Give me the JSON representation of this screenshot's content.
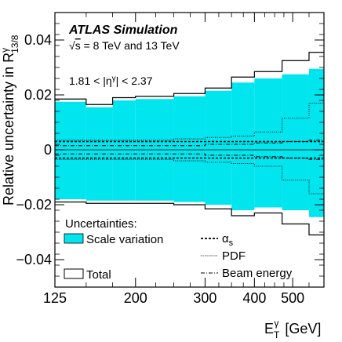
{
  "chart_data": {
    "type": "area",
    "xlabel": "E_T^γ [GeV]",
    "ylabel": "Relative uncertainty in R^γ_13/8",
    "xscale": "log",
    "xlim": [
      125,
      600
    ],
    "ylim": [
      -0.05,
      0.05
    ],
    "xticks": [
      125,
      200,
      300,
      400,
      500
    ],
    "xtick_labels": [
      "125",
      "200",
      "300",
      "400",
      "500"
    ],
    "yticks": [
      -0.04,
      -0.02,
      0,
      0.02,
      0.04
    ],
    "ytick_labels": [
      "−0.04",
      "−0.02",
      "0",
      "0.02",
      "0.04"
    ],
    "annotations": {
      "experiment": "ATLAS Simulation",
      "energy": "√s = 8 TeV and 13 TeV",
      "eta_range": "1.81 < |η^γ| < 2.37"
    },
    "legend": {
      "title": "Uncertainties:",
      "placement": "bottom",
      "entries": [
        "Scale variation",
        "Total",
        "α_s",
        "PDF",
        "Beam energy"
      ]
    },
    "bin_edges": [
      125,
      150,
      175,
      200,
      250,
      300,
      350,
      400,
      470,
      550,
      600
    ],
    "series": [
      {
        "name": "Scale variation",
        "style": "filled-band",
        "color": "#00e5ee",
        "up": [
          0.0175,
          0.0155,
          0.018,
          0.0185,
          0.0195,
          0.0215,
          0.0245,
          0.026,
          0.0275,
          0.0295
        ],
        "down": [
          -0.018,
          -0.0185,
          -0.0185,
          -0.0185,
          -0.019,
          -0.02,
          -0.022,
          -0.021,
          -0.022,
          -0.0245
        ]
      },
      {
        "name": "Total",
        "style": "solid-outline",
        "color": "#000000",
        "up": [
          0.0185,
          0.0165,
          0.019,
          0.0195,
          0.0205,
          0.0225,
          0.0265,
          0.0285,
          0.0325,
          0.0355
        ],
        "down": [
          -0.019,
          -0.0195,
          -0.0195,
          -0.0195,
          -0.02,
          -0.0215,
          -0.024,
          -0.023,
          -0.027,
          -0.031
        ]
      },
      {
        "name": "α_s",
        "style": "dashed",
        "color": "#000000",
        "up": [
          0.003,
          0.003,
          0.003,
          0.003,
          0.003,
          0.003,
          0.003,
          0.003,
          0.003,
          0.003
        ],
        "down": [
          -0.003,
          -0.003,
          -0.003,
          -0.003,
          -0.003,
          -0.003,
          -0.003,
          -0.003,
          -0.003,
          -0.003
        ]
      },
      {
        "name": "PDF",
        "style": "dotted",
        "color": "#000000",
        "up": [
          0.0035,
          0.0035,
          0.0035,
          0.0035,
          0.004,
          0.0045,
          0.005,
          0.0065,
          0.0115,
          0.017
        ],
        "down": [
          -0.0035,
          -0.0035,
          -0.0035,
          -0.0035,
          -0.004,
          -0.0045,
          -0.005,
          -0.006,
          -0.011,
          -0.016
        ]
      },
      {
        "name": "Beam energy",
        "style": "dash-dot",
        "color": "#000000",
        "up": [
          0.0015,
          0.0015,
          0.0015,
          0.0015,
          0.0015,
          0.002,
          0.002,
          0.0025,
          0.003,
          0.0035
        ],
        "down": [
          -0.0015,
          -0.0015,
          -0.0015,
          -0.0015,
          -0.0015,
          -0.002,
          -0.002,
          -0.0025,
          -0.003,
          -0.0035
        ]
      }
    ],
    "grid": false
  }
}
